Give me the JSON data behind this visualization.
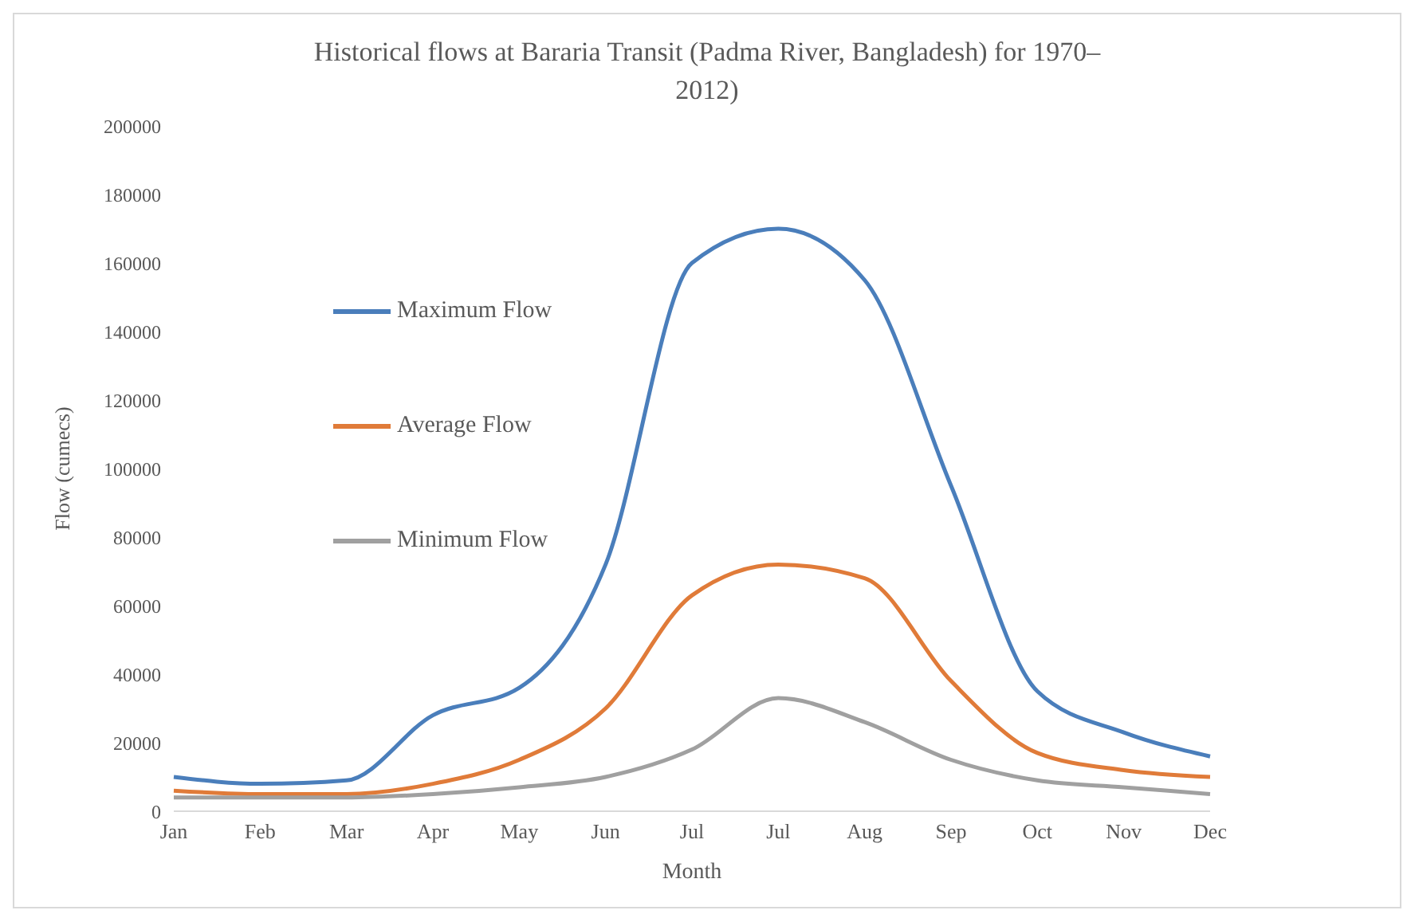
{
  "chart_data": {
    "type": "line",
    "title": "Historical flows at Bararia Transit (Padma River, Bangladesh) for 1970–2012)",
    "xlabel": "Month",
    "ylabel": "Flow (cumecs)",
    "categories": [
      "Jan",
      "Feb",
      "Mar",
      "Apr",
      "May",
      "Jun",
      "Jul",
      "Jul",
      "Aug",
      "Sep",
      "Oct",
      "Nov",
      "Dec"
    ],
    "series": [
      {
        "name": "Maximum Flow",
        "color": "#4a7ebb",
        "values": [
          10000,
          8000,
          9000,
          28000,
          36000,
          72000,
          160000,
          170000,
          155000,
          95000,
          35000,
          23000,
          16000
        ]
      },
      {
        "name": "Average Flow",
        "color": "#e07b39",
        "values": [
          6000,
          5000,
          5000,
          8000,
          15000,
          30000,
          63000,
          72000,
          68000,
          38000,
          17000,
          12000,
          10000
        ]
      },
      {
        "name": "Minimum Flow",
        "color": "#a0a0a0",
        "values": [
          4000,
          4000,
          4000,
          5000,
          7000,
          10000,
          18000,
          33000,
          26000,
          15000,
          9000,
          7000,
          5000
        ]
      }
    ],
    "ylim": [
      0,
      200000
    ],
    "yticks": [
      0,
      20000,
      40000,
      60000,
      80000,
      100000,
      120000,
      140000,
      160000,
      180000,
      200000
    ],
    "legend": "left",
    "grid": false,
    "marker": "none",
    "line_style": "solid"
  }
}
